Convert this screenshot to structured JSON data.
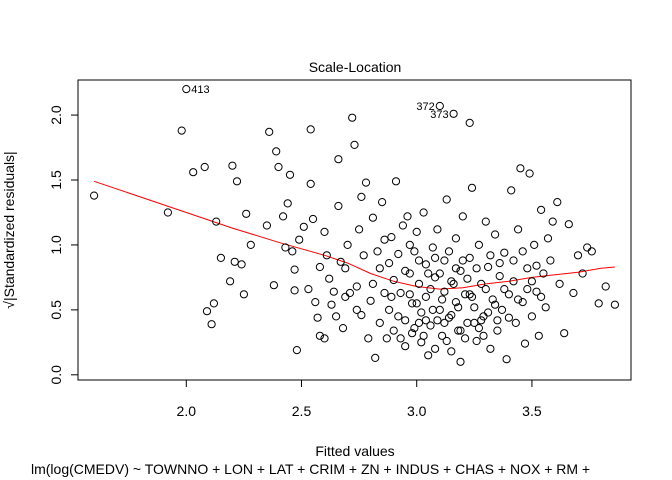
{
  "chart_data": {
    "type": "scatter",
    "title": "Scale-Location",
    "xlabel": "Fitted values",
    "ylabel": "√|Standardized residuals|",
    "subtitle": "lm(log(CMEDV) ~ TOWNNO + LON + LAT + CRIM + ZN + INDUS + CHAS + NOX + RM +",
    "xlim": [
      1.53,
      3.93
    ],
    "ylim": [
      -0.04,
      2.27
    ],
    "xticks": [
      2.0,
      2.5,
      3.0,
      3.5
    ],
    "xtick_labels": [
      "2.0",
      "2.5",
      "3.0",
      "3.5"
    ],
    "yticks": [
      0.0,
      0.5,
      1.0,
      1.5,
      2.0
    ],
    "ytick_labels": [
      "0.0",
      "0.5",
      "1.0",
      "1.5",
      "2.0"
    ],
    "grid": false,
    "smoother_color": "#ff0000",
    "point_color": "#000000",
    "series": [
      {
        "kind": "points",
        "values": [
          [
            1.6,
            1.38
          ],
          [
            1.92,
            1.25
          ],
          [
            1.98,
            1.88
          ],
          [
            2.0,
            2.2
          ],
          [
            2.03,
            1.56
          ],
          [
            2.08,
            1.6
          ],
          [
            2.09,
            0.49
          ],
          [
            2.11,
            0.39
          ],
          [
            2.12,
            0.55
          ],
          [
            2.13,
            1.18
          ],
          [
            2.15,
            0.9
          ],
          [
            2.19,
            0.72
          ],
          [
            2.2,
            1.61
          ],
          [
            2.21,
            0.87
          ],
          [
            2.22,
            1.49
          ],
          [
            2.24,
            0.85
          ],
          [
            2.25,
            0.62
          ],
          [
            2.26,
            1.24
          ],
          [
            2.28,
            1.0
          ],
          [
            2.35,
            1.15
          ],
          [
            2.36,
            1.87
          ],
          [
            2.38,
            0.69
          ],
          [
            2.39,
            1.72
          ],
          [
            2.4,
            1.6
          ],
          [
            2.42,
            1.22
          ],
          [
            2.43,
            0.98
          ],
          [
            2.44,
            1.32
          ],
          [
            2.45,
            1.54
          ],
          [
            2.46,
            0.95
          ],
          [
            2.47,
            0.81
          ],
          [
            2.47,
            0.65
          ],
          [
            2.48,
            0.19
          ],
          [
            2.49,
            1.04
          ],
          [
            2.51,
            1.14
          ],
          [
            2.53,
            0.66
          ],
          [
            2.54,
            1.47
          ],
          [
            2.54,
            1.89
          ],
          [
            2.55,
            1.2
          ],
          [
            2.56,
            0.56
          ],
          [
            2.57,
            0.44
          ],
          [
            2.58,
            0.3
          ],
          [
            2.58,
            0.83
          ],
          [
            2.6,
            1.1
          ],
          [
            2.6,
            0.28
          ],
          [
            2.62,
            0.74
          ],
          [
            2.63,
            0.54
          ],
          [
            2.65,
            0.45
          ],
          [
            2.66,
            1.66
          ],
          [
            2.66,
            1.3
          ],
          [
            2.67,
            0.87
          ],
          [
            2.68,
            0.36
          ],
          [
            2.69,
            0.6
          ],
          [
            2.7,
            1.0
          ],
          [
            2.71,
            0.63
          ],
          [
            2.72,
            1.98
          ],
          [
            2.73,
            1.77
          ],
          [
            2.74,
            0.68
          ],
          [
            2.75,
            1.12
          ],
          [
            2.76,
            1.37
          ],
          [
            2.76,
            0.46
          ],
          [
            2.78,
            1.48
          ],
          [
            2.79,
            0.28
          ],
          [
            2.8,
            0.57
          ],
          [
            2.81,
            1.21
          ],
          [
            2.82,
            0.13
          ],
          [
            2.83,
            0.95
          ],
          [
            2.84,
            0.4
          ],
          [
            2.85,
            1.33
          ],
          [
            2.86,
            0.63
          ],
          [
            2.87,
            0.28
          ],
          [
            2.88,
            0.86
          ],
          [
            2.88,
            0.5
          ],
          [
            2.89,
            1.06
          ],
          [
            2.9,
            0.34
          ],
          [
            2.9,
            0.73
          ],
          [
            2.91,
            1.49
          ],
          [
            2.92,
            0.93
          ],
          [
            2.93,
            0.63
          ],
          [
            2.94,
            1.15
          ],
          [
            2.95,
            0.22
          ],
          [
            2.95,
            0.42
          ],
          [
            2.96,
            1.22
          ],
          [
            2.97,
            0.78
          ],
          [
            2.98,
            0.55
          ],
          [
            2.98,
            0.32
          ],
          [
            2.99,
            0.95
          ],
          [
            3.0,
            1.1
          ],
          [
            3.01,
            0.7
          ],
          [
            3.02,
            0.25
          ],
          [
            3.02,
            0.48
          ],
          [
            3.03,
            1.25
          ],
          [
            3.04,
            0.85
          ],
          [
            3.04,
            0.6
          ],
          [
            3.05,
            0.15
          ],
          [
            3.06,
            0.38
          ],
          [
            3.07,
            0.98
          ],
          [
            3.08,
            0.75
          ],
          [
            3.08,
            0.2
          ],
          [
            3.09,
            1.12
          ],
          [
            3.1,
            2.07
          ],
          [
            3.1,
            0.5
          ],
          [
            3.11,
            0.3
          ],
          [
            3.12,
            0.88
          ],
          [
            3.12,
            0.64
          ],
          [
            3.13,
            1.35
          ],
          [
            3.14,
            0.44
          ],
          [
            3.15,
            0.72
          ],
          [
            3.15,
            0.18
          ],
          [
            3.16,
            2.01
          ],
          [
            3.17,
            1.05
          ],
          [
            3.17,
            0.56
          ],
          [
            3.18,
            0.34
          ],
          [
            3.19,
            0.8
          ],
          [
            3.19,
            0.1
          ],
          [
            3.2,
            1.22
          ],
          [
            3.21,
            0.62
          ],
          [
            3.22,
            0.4
          ],
          [
            3.23,
            1.94
          ],
          [
            3.23,
            0.9
          ],
          [
            3.24,
            1.44
          ],
          [
            3.25,
            0.52
          ],
          [
            3.26,
            0.26
          ],
          [
            3.27,
            1.0
          ],
          [
            3.28,
            0.7
          ],
          [
            3.29,
            0.45
          ],
          [
            3.3,
            1.18
          ],
          [
            3.31,
            0.83
          ],
          [
            3.32,
            0.2
          ],
          [
            3.33,
            0.58
          ],
          [
            3.34,
            1.08
          ],
          [
            3.35,
            0.34
          ],
          [
            3.36,
            0.76
          ],
          [
            3.37,
            0.5
          ],
          [
            3.38,
            0.94
          ],
          [
            3.39,
            0.12
          ],
          [
            3.4,
            0.62
          ],
          [
            3.41,
            1.42
          ],
          [
            3.42,
            0.88
          ],
          [
            3.43,
            0.4
          ],
          [
            3.44,
            1.12
          ],
          [
            3.45,
            1.59
          ],
          [
            3.46,
            0.56
          ],
          [
            3.47,
            0.24
          ],
          [
            3.48,
            0.82
          ],
          [
            3.49,
            1.55
          ],
          [
            3.5,
            0.45
          ],
          [
            3.51,
            1.0
          ],
          [
            3.52,
            0.64
          ],
          [
            3.53,
            0.3
          ],
          [
            3.54,
            1.27
          ],
          [
            3.55,
            0.78
          ],
          [
            3.56,
            0.52
          ],
          [
            3.57,
            1.05
          ],
          [
            3.58,
            0.88
          ],
          [
            3.59,
            1.18
          ],
          [
            3.61,
            1.33
          ],
          [
            3.62,
            0.7
          ],
          [
            3.64,
            0.32
          ],
          [
            3.66,
            1.16
          ],
          [
            3.68,
            0.63
          ],
          [
            3.7,
            0.92
          ],
          [
            3.72,
            0.78
          ],
          [
            3.74,
            0.98
          ],
          [
            3.76,
            0.95
          ],
          [
            3.79,
            0.55
          ],
          [
            3.82,
            0.68
          ],
          [
            3.86,
            0.54
          ],
          [
            2.61,
            0.92
          ],
          [
            2.64,
            0.64
          ],
          [
            2.69,
            0.82
          ],
          [
            2.74,
            0.5
          ],
          [
            2.77,
            0.92
          ],
          [
            2.81,
            0.7
          ],
          [
            2.84,
            0.82
          ],
          [
            2.86,
            1.04
          ],
          [
            2.89,
            0.6
          ],
          [
            2.92,
            0.45
          ],
          [
            2.95,
            0.8
          ],
          [
            2.97,
            1.0
          ],
          [
            3.0,
            0.55
          ],
          [
            3.01,
            0.88
          ],
          [
            3.04,
            0.42
          ],
          [
            3.06,
            0.66
          ],
          [
            3.08,
            0.9
          ],
          [
            3.1,
            0.78
          ],
          [
            3.12,
            0.4
          ],
          [
            3.14,
            0.95
          ],
          [
            3.16,
            0.7
          ],
          [
            3.18,
            0.52
          ],
          [
            3.2,
            0.88
          ],
          [
            3.22,
            0.74
          ],
          [
            3.24,
            0.6
          ],
          [
            3.26,
            0.82
          ],
          [
            3.28,
            0.42
          ],
          [
            3.3,
            0.66
          ],
          [
            3.32,
            0.92
          ],
          [
            3.34,
            0.54
          ],
          [
            3.36,
            0.86
          ],
          [
            3.38,
            0.66
          ],
          [
            3.4,
            0.44
          ],
          [
            3.42,
            0.72
          ],
          [
            3.44,
            0.58
          ],
          [
            3.46,
            0.95
          ],
          [
            3.48,
            0.66
          ],
          [
            3.5,
            0.72
          ],
          [
            3.52,
            0.84
          ],
          [
            3.54,
            0.6
          ],
          [
            2.99,
            0.36
          ],
          [
            3.03,
            0.3
          ],
          [
            3.07,
            0.5
          ],
          [
            3.11,
            0.58
          ],
          [
            3.15,
            0.46
          ],
          [
            3.19,
            0.34
          ],
          [
            3.23,
            0.62
          ],
          [
            3.27,
            0.36
          ],
          [
            3.31,
            0.48
          ],
          [
            3.35,
            0.42
          ],
          [
            2.93,
            0.28
          ],
          [
            2.97,
            0.62
          ],
          [
            3.01,
            0.4
          ],
          [
            3.05,
            0.78
          ],
          [
            3.09,
            0.42
          ],
          [
            3.13,
            0.26
          ],
          [
            3.17,
            0.82
          ],
          [
            3.21,
            0.28
          ],
          [
            3.25,
            0.4
          ],
          [
            3.29,
            0.3
          ]
        ]
      },
      {
        "kind": "smoother",
        "values": [
          [
            1.6,
            1.49
          ],
          [
            1.8,
            1.37
          ],
          [
            2.0,
            1.25
          ],
          [
            2.2,
            1.13
          ],
          [
            2.4,
            1.02
          ],
          [
            2.6,
            0.92
          ],
          [
            2.7,
            0.86
          ],
          [
            2.8,
            0.78
          ],
          [
            2.9,
            0.72
          ],
          [
            3.0,
            0.68
          ],
          [
            3.1,
            0.66
          ],
          [
            3.2,
            0.67
          ],
          [
            3.3,
            0.7
          ],
          [
            3.4,
            0.72
          ],
          [
            3.5,
            0.75
          ],
          [
            3.6,
            0.77
          ],
          [
            3.7,
            0.79
          ],
          [
            3.8,
            0.82
          ],
          [
            3.86,
            0.83
          ]
        ]
      }
    ],
    "annotations": [
      {
        "label": "413",
        "x": 2.0,
        "y": 2.2,
        "side": "right"
      },
      {
        "label": "372",
        "x": 3.1,
        "y": 2.07,
        "side": "left"
      },
      {
        "label": "373",
        "x": 3.16,
        "y": 2.01,
        "side": "left"
      }
    ]
  }
}
